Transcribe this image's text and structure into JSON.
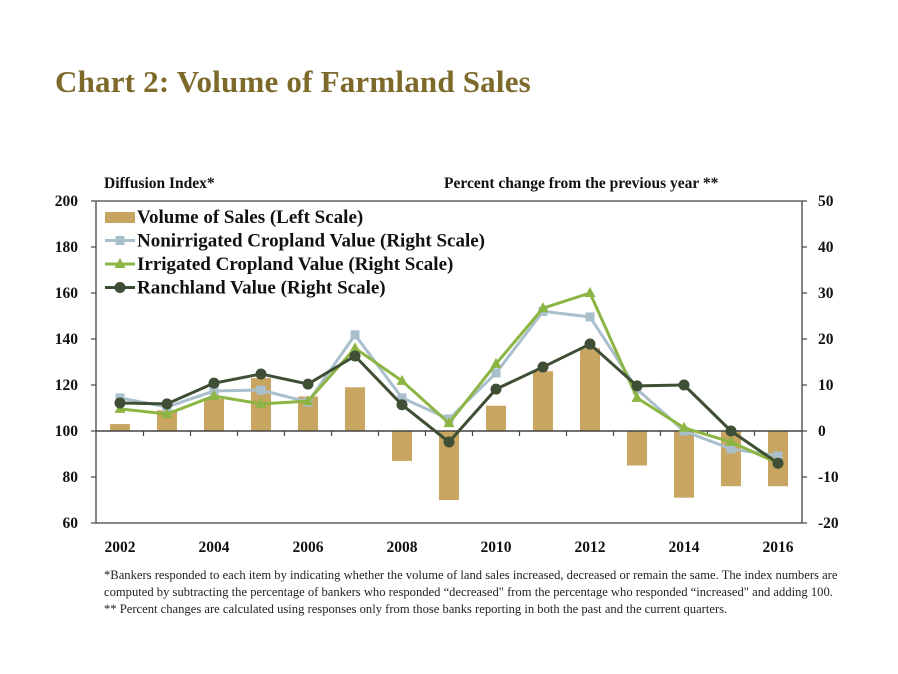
{
  "title": "Chart 2: Volume of  Farmland Sales",
  "chart_data": {
    "type": "bar+line",
    "title": "Chart 2: Volume of Farmland Sales",
    "left_axis_label": "Diffusion Index*",
    "right_axis_label": "Percent change from the previous year **",
    "categories": [
      "2002",
      "2003",
      "2004",
      "2005",
      "2006",
      "2007",
      "2008",
      "2009",
      "2010",
      "2011",
      "2012",
      "2013",
      "2014",
      "2015",
      "2016"
    ],
    "x_tick_labels": [
      "2002",
      "2004",
      "2006",
      "2008",
      "2010",
      "2012",
      "2014",
      "2016"
    ],
    "left_ylim": [
      60,
      200
    ],
    "left_ticks": [
      60,
      80,
      100,
      120,
      140,
      160,
      180,
      200
    ],
    "right_ylim": [
      -20,
      50
    ],
    "right_ticks": [
      -20,
      -10,
      0,
      10,
      20,
      30,
      40,
      50
    ],
    "bar_baseline": 100,
    "grid": false,
    "legend_position": "top-left",
    "series": [
      {
        "name": "Volume of Sales (Left Scale)",
        "type": "bar",
        "axis": "left",
        "color": "#c8a560",
        "values": [
          103,
          109,
          114,
          123,
          115,
          119,
          87,
          70,
          111,
          126,
          136,
          85,
          71,
          76,
          76
        ]
      },
      {
        "name": "Nonirrigated Cropland Value (Right Scale)",
        "type": "line",
        "axis": "right",
        "marker": "square",
        "color": "#a9bfcc",
        "values": [
          7.2,
          5.2,
          8.7,
          8.9,
          6.3,
          20.9,
          7.2,
          2.6,
          12.6,
          26.0,
          24.8,
          9.1,
          0.0,
          -3.9,
          -5.4
        ]
      },
      {
        "name": "Irrigated Cropland Value (Right Scale)",
        "type": "line",
        "axis": "right",
        "marker": "triangle",
        "color": "#8db543",
        "values": [
          4.8,
          3.7,
          7.6,
          5.9,
          6.5,
          18.0,
          10.9,
          1.7,
          14.6,
          26.7,
          30.0,
          7.2,
          0.7,
          -2.4,
          -7.0
        ]
      },
      {
        "name": "Ranchland Value (Right Scale)",
        "type": "line",
        "axis": "right",
        "marker": "circle",
        "color": "#3f4f35",
        "values": [
          6.1,
          5.9,
          10.4,
          12.4,
          10.2,
          16.3,
          5.7,
          -2.4,
          9.1,
          13.9,
          18.9,
          9.8,
          10.0,
          0.0,
          -7.0
        ]
      }
    ]
  },
  "footnotes": [
    "*Bankers responded to each item by indicating whether the volume of  land sales increased, decreased or remain the same. The index numbers are computed by subtracting the percentage of  bankers who responded “decreased\" from the percentage who responded “increased\" and adding 100.",
    "** Percent changes are calculated using responses only from those banks reporting in both the past and the current quarters."
  ]
}
